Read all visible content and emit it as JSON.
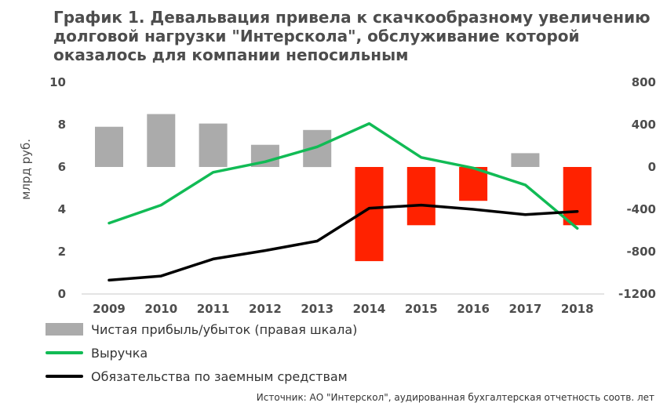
{
  "title_lines": [
    "График 1. Девальвация привела к скачкообразному увеличению",
    "долговой нагрузки \"Интерскола\", обслуживание которой",
    "оказалось для компании непосильным"
  ],
  "source": "Источник: АО \"Интерскол\", аудированная бухгалтерская отчетность соотв. лет",
  "colors": {
    "profit": "#ababab",
    "loss": "#ff2200",
    "revenue": "#11bb55",
    "debt": "#000000",
    "text": "#4d4d4d"
  },
  "chart_data": {
    "type": "bar+line",
    "categories": [
      "2009",
      "2010",
      "2011",
      "2012",
      "2013",
      "2014",
      "2015",
      "2016",
      "2017",
      "2018"
    ],
    "ylabel": "млрд руб.",
    "y_left": {
      "lim": [
        0,
        10
      ],
      "ticks": [
        "0",
        "2",
        "4",
        "6",
        "8",
        "10"
      ]
    },
    "y_right": {
      "lim": [
        -1200,
        800
      ],
      "ticks": [
        "-1200",
        "-800",
        "-400",
        "0",
        "400",
        "800"
      ]
    },
    "grid": false,
    "legend_position": "bottom-left",
    "series": [
      {
        "name": "Чистая прибыль/убыток (правая шкала)",
        "type": "bar",
        "axis": "right",
        "values": [
          380,
          500,
          410,
          210,
          350,
          -890,
          -550,
          -320,
          130,
          -550
        ]
      },
      {
        "name": "Выручка",
        "type": "line",
        "axis": "left",
        "values": [
          3.35,
          4.2,
          5.75,
          6.25,
          6.95,
          8.05,
          6.45,
          5.95,
          5.15,
          3.1
        ]
      },
      {
        "name": "Обязательства по заемным средствам",
        "type": "line",
        "axis": "left",
        "values": [
          0.65,
          0.85,
          1.65,
          2.05,
          2.5,
          4.05,
          4.2,
          4.0,
          3.75,
          3.9
        ]
      }
    ]
  }
}
